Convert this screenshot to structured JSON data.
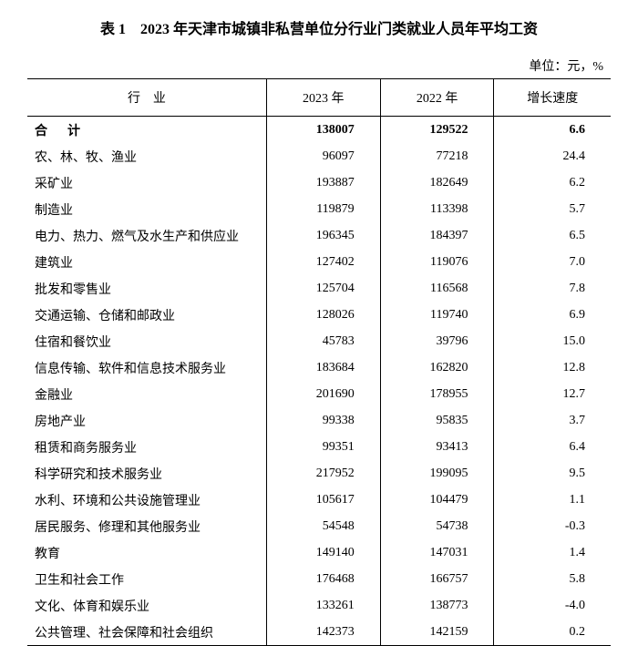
{
  "title": "表 1　2023 年天津市城镇非私营单位分行业门类就业人员年平均工资",
  "unit": "单位：元，%",
  "columns": [
    "行　业",
    "2023 年",
    "2022 年",
    "增长速度"
  ],
  "total_row": {
    "label": "合　计",
    "y2023": "138007",
    "y2022": "129522",
    "growth": "6.6"
  },
  "rows": [
    {
      "label": "农、林、牧、渔业",
      "y2023": "96097",
      "y2022": "77218",
      "growth": "24.4"
    },
    {
      "label": "采矿业",
      "y2023": "193887",
      "y2022": "182649",
      "growth": "6.2"
    },
    {
      "label": "制造业",
      "y2023": "119879",
      "y2022": "113398",
      "growth": "5.7"
    },
    {
      "label": "电力、热力、燃气及水生产和供应业",
      "y2023": "196345",
      "y2022": "184397",
      "growth": "6.5"
    },
    {
      "label": "建筑业",
      "y2023": "127402",
      "y2022": "119076",
      "growth": "7.0"
    },
    {
      "label": "批发和零售业",
      "y2023": "125704",
      "y2022": "116568",
      "growth": "7.8"
    },
    {
      "label": "交通运输、仓储和邮政业",
      "y2023": "128026",
      "y2022": "119740",
      "growth": "6.9"
    },
    {
      "label": "住宿和餐饮业",
      "y2023": "45783",
      "y2022": "39796",
      "growth": "15.0"
    },
    {
      "label": "信息传输、软件和信息技术服务业",
      "y2023": "183684",
      "y2022": "162820",
      "growth": "12.8"
    },
    {
      "label": "金融业",
      "y2023": "201690",
      "y2022": "178955",
      "growth": "12.7"
    },
    {
      "label": "房地产业",
      "y2023": "99338",
      "y2022": "95835",
      "growth": "3.7"
    },
    {
      "label": "租赁和商务服务业",
      "y2023": "99351",
      "y2022": "93413",
      "growth": "6.4"
    },
    {
      "label": "科学研究和技术服务业",
      "y2023": "217952",
      "y2022": "199095",
      "growth": "9.5"
    },
    {
      "label": "水利、环境和公共设施管理业",
      "y2023": "105617",
      "y2022": "104479",
      "growth": "1.1"
    },
    {
      "label": "居民服务、修理和其他服务业",
      "y2023": "54548",
      "y2022": "54738",
      "growth": "-0.3"
    },
    {
      "label": "教育",
      "y2023": "149140",
      "y2022": "147031",
      "growth": "1.4"
    },
    {
      "label": "卫生和社会工作",
      "y2023": "176468",
      "y2022": "166757",
      "growth": "5.8"
    },
    {
      "label": "文化、体育和娱乐业",
      "y2023": "133261",
      "y2022": "138773",
      "growth": "-4.0"
    },
    {
      "label": "公共管理、社会保障和社会组织",
      "y2023": "142373",
      "y2022": "142159",
      "growth": "0.2"
    }
  ],
  "style": {
    "background_color": "#ffffff",
    "text_color": "#000000",
    "border_color": "#000000",
    "title_fontsize": 16,
    "body_fontsize": 14,
    "font_family": "SimSun"
  }
}
